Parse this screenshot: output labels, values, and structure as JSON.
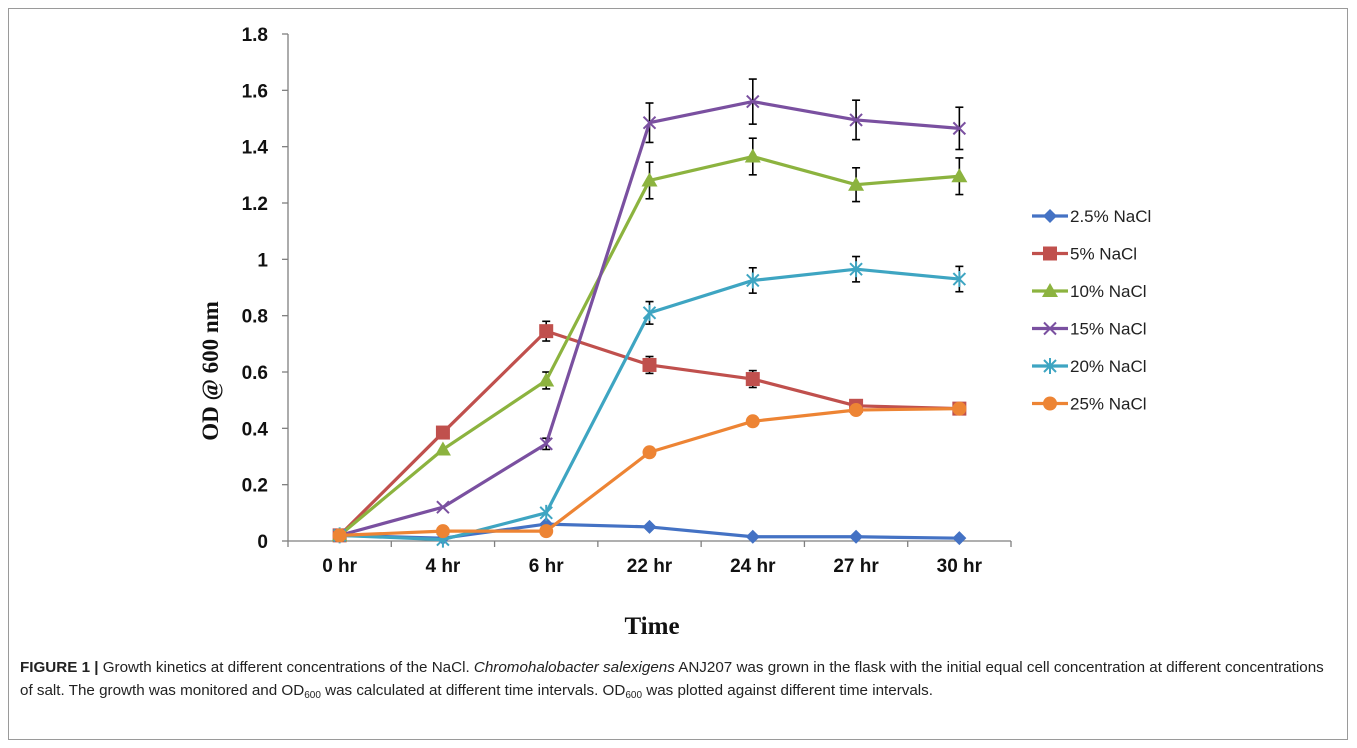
{
  "chart_data": {
    "type": "line",
    "title": "",
    "xlabel": "Time",
    "ylabel": "OD @ 600 nm",
    "categories": [
      "0 hr",
      "4 hr",
      "6 hr",
      "22 hr",
      "24 hr",
      "27 hr",
      "30 hr"
    ],
    "ylim": [
      0,
      1.8
    ],
    "yticks": [
      "0",
      "0.2",
      "0.4",
      "0.6",
      "0.8",
      "1",
      "1.2",
      "1.4",
      "1.6",
      "1.8"
    ],
    "grid": false,
    "legend_position": "right",
    "error_bars": true,
    "series": [
      {
        "name": "2.5% NaCl",
        "color": "#4472c4",
        "marker": "diamond",
        "values": [
          0.02,
          0.01,
          0.06,
          0.05,
          0.015,
          0.015,
          0.01
        ],
        "errors": [
          0,
          0,
          0,
          0,
          0,
          0,
          0
        ]
      },
      {
        "name": "5% NaCl",
        "color": "#c0504d",
        "marker": "square",
        "values": [
          0.02,
          0.385,
          0.745,
          0.625,
          0.575,
          0.48,
          0.47
        ],
        "errors": [
          0,
          0,
          0.035,
          0.03,
          0.03,
          0.01,
          0.01
        ]
      },
      {
        "name": "10% NaCl",
        "color": "#8cb33f",
        "marker": "triangle",
        "values": [
          0.02,
          0.325,
          0.57,
          1.28,
          1.365,
          1.265,
          1.295
        ],
        "errors": [
          0,
          0,
          0.03,
          0.065,
          0.065,
          0.06,
          0.065
        ]
      },
      {
        "name": "15% NaCl",
        "color": "#7a50a0",
        "marker": "x",
        "values": [
          0.02,
          0.12,
          0.345,
          1.485,
          1.56,
          1.495,
          1.465
        ],
        "errors": [
          0,
          0,
          0.02,
          0.07,
          0.08,
          0.07,
          0.075
        ]
      },
      {
        "name": "20% NaCl",
        "color": "#3ea5c2",
        "marker": "star",
        "values": [
          0.02,
          0.005,
          0.1,
          0.81,
          0.925,
          0.965,
          0.93
        ],
        "errors": [
          0,
          0,
          0,
          0.04,
          0.045,
          0.045,
          0.045
        ]
      },
      {
        "name": "25% NaCl",
        "color": "#ed8434",
        "marker": "circle",
        "values": [
          0.02,
          0.035,
          0.035,
          0.315,
          0.425,
          0.465,
          0.47
        ],
        "errors": [
          0,
          0,
          0,
          0,
          0,
          0,
          0
        ]
      }
    ]
  },
  "caption": {
    "label": "FIGURE 1 |",
    "text_1": " Growth kinetics at different concentrations of the NaCl. ",
    "species": "Chromohalobacter salexigens",
    "text_2": " ANJ207 was grown in the flask with the initial equal cell concentration at different concentrations of salt. The growth was monitored and OD",
    "sub_1": "600",
    "text_3": " was calculated at different time intervals. OD",
    "sub_2": "600",
    "text_4": " was plotted against different time intervals."
  }
}
